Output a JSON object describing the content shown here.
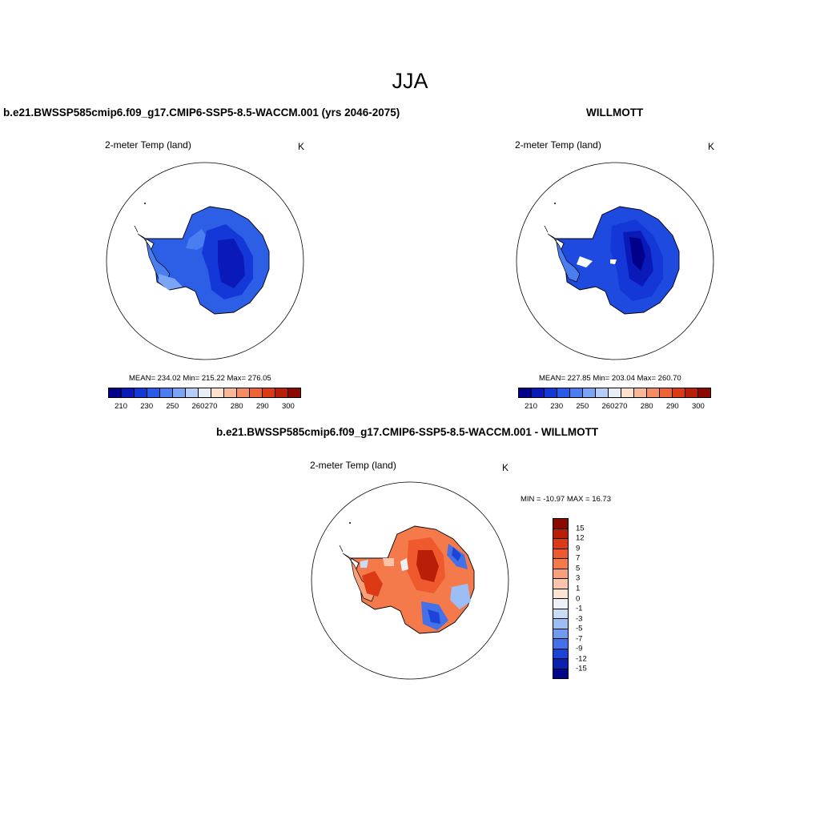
{
  "page_title": "JJA",
  "panels": {
    "model": {
      "title": "b.e21.BWSSP585cmip6.f09_g17.CMIP6-SSP5-8.5-WACCM.001 (yrs 2046-2075)",
      "variable": "2-meter Temp (land)",
      "units": "K",
      "stats": "MEAN= 234.02  Min= 215.22  Max= 276.05"
    },
    "obs": {
      "title": "WILLMOTT",
      "variable": "2-meter Temp (land)",
      "units": "K",
      "stats": "MEAN= 227.85  Min= 203.04  Max= 260.70"
    },
    "diff": {
      "title": "b.e21.BWSSP585cmip6.f09_g17.CMIP6-SSP5-8.5-WACCM.001 - WILLMOTT",
      "variable": "2-meter Temp (land)",
      "units": "K",
      "stats": "MIN = -10.97 MAX =  16.73"
    }
  },
  "colorbar_abs": {
    "colors": [
      "#00008a",
      "#0a1ab8",
      "#1438d8",
      "#2a5ae8",
      "#4a7ef0",
      "#7aa4f4",
      "#b4cef8",
      "#e6eef8",
      "#fce0cc",
      "#f8b898",
      "#f48c64",
      "#ee6238",
      "#dc3a14",
      "#b81e08",
      "#8a0a00"
    ],
    "tick_labels": [
      "210",
      "230",
      "250",
      "260",
      "270",
      "280",
      "290",
      "300"
    ]
  },
  "colorbar_diff": {
    "colors": [
      "#8a0a00",
      "#b81e08",
      "#dc3a14",
      "#ee5a2e",
      "#f47a4c",
      "#f8a07a",
      "#fcc4a8",
      "#fce4d4",
      "#eef2f8",
      "#c8dcf6",
      "#9cbef4",
      "#6e9af0",
      "#4470e8",
      "#1c44d8",
      "#0a20b0",
      "#00068a"
    ],
    "tick_labels": [
      "15",
      "12",
      "9",
      "7",
      "5",
      "3",
      "1",
      "0",
      "-1",
      "-3",
      "-5",
      "-7",
      "-9",
      "-12",
      "-15"
    ]
  }
}
